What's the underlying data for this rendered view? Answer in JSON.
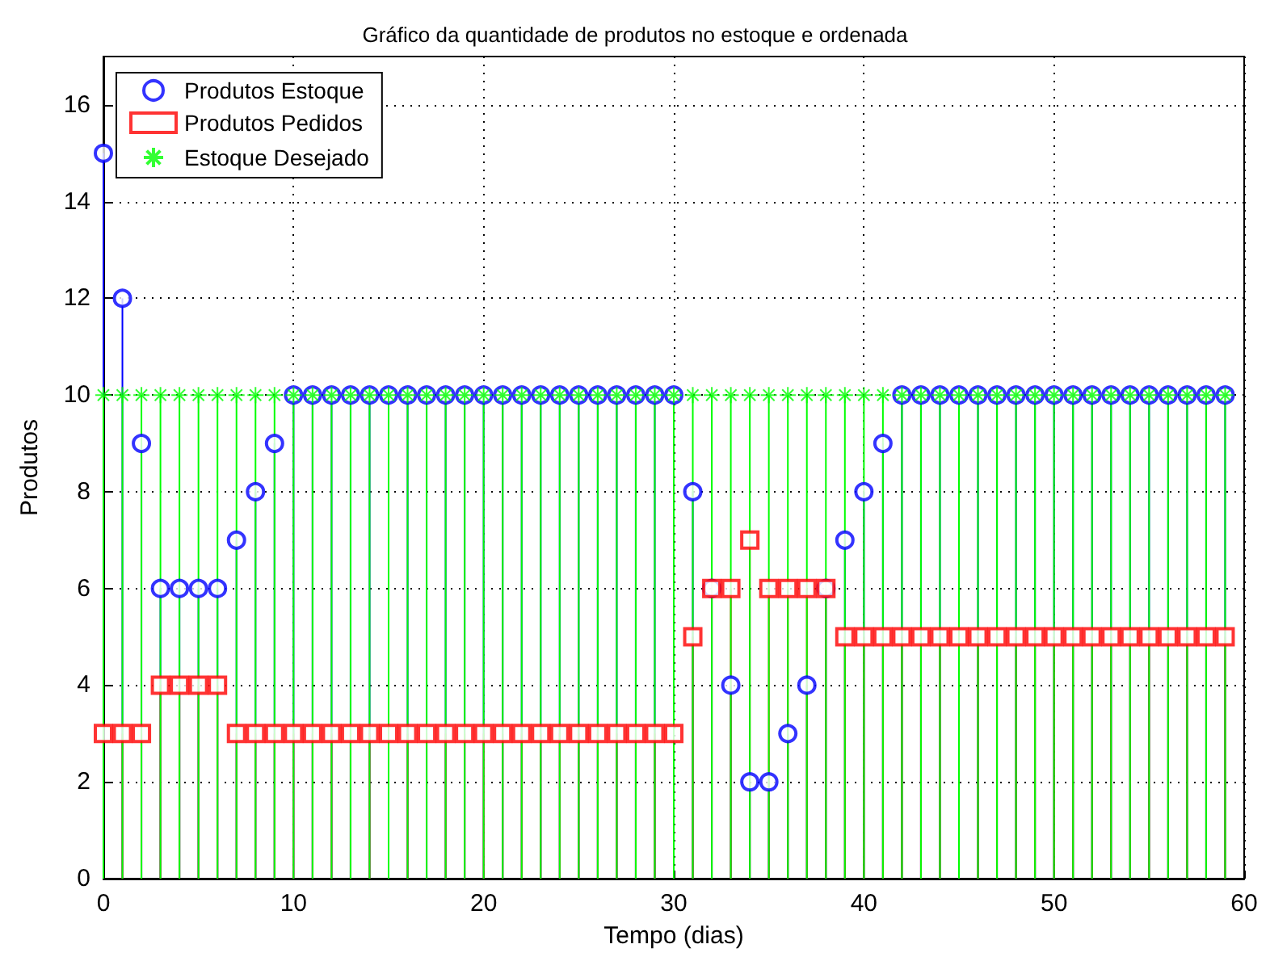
{
  "chart_data": {
    "type": "lollipop",
    "title": "Gráfico da quantidade de produtos no estoque e ordenada",
    "xlabel": "Tempo (dias)",
    "ylabel": "Produtos",
    "x": [
      0,
      1,
      2,
      3,
      4,
      5,
      6,
      7,
      8,
      9,
      10,
      11,
      12,
      13,
      14,
      15,
      16,
      17,
      18,
      19,
      20,
      21,
      22,
      23,
      24,
      25,
      26,
      27,
      28,
      29,
      30,
      31,
      32,
      33,
      34,
      35,
      36,
      37,
      38,
      39,
      40,
      41,
      42,
      43,
      44,
      45,
      46,
      47,
      48,
      49,
      50,
      51,
      52,
      53,
      54,
      55,
      56,
      57,
      58,
      59
    ],
    "series": [
      {
        "name": "Produtos Estoque",
        "color": "#0000ff",
        "marker": "circle",
        "values": [
          15,
          12,
          9,
          6,
          6,
          6,
          6,
          7,
          8,
          9,
          10,
          10,
          10,
          10,
          10,
          10,
          10,
          10,
          10,
          10,
          10,
          10,
          10,
          10,
          10,
          10,
          10,
          10,
          10,
          10,
          10,
          8,
          6,
          4,
          2,
          2,
          3,
          4,
          6,
          7,
          8,
          9,
          10,
          10,
          10,
          10,
          10,
          10,
          10,
          10,
          10,
          10,
          10,
          10,
          10,
          10,
          10,
          10,
          10,
          10
        ]
      },
      {
        "name": "Produtos Pedidos",
        "color": "#ff0000",
        "marker": "square",
        "values": [
          3,
          3,
          3,
          4,
          4,
          4,
          4,
          3,
          3,
          3,
          3,
          3,
          3,
          3,
          3,
          3,
          3,
          3,
          3,
          3,
          3,
          3,
          3,
          3,
          3,
          3,
          3,
          3,
          3,
          3,
          3,
          5,
          6,
          6,
          7,
          6,
          6,
          6,
          6,
          5,
          5,
          5,
          5,
          5,
          5,
          5,
          5,
          5,
          5,
          5,
          5,
          5,
          5,
          5,
          5,
          5,
          5,
          5,
          5,
          5
        ]
      },
      {
        "name": "Estoque Desejado",
        "color": "#00ff00",
        "marker": "cross",
        "values": [
          10,
          10,
          10,
          10,
          10,
          10,
          10,
          10,
          10,
          10,
          10,
          10,
          10,
          10,
          10,
          10,
          10,
          10,
          10,
          10,
          10,
          10,
          10,
          10,
          10,
          10,
          10,
          10,
          10,
          10,
          10,
          10,
          10,
          10,
          10,
          10,
          10,
          10,
          10,
          10,
          10,
          10,
          10,
          10,
          10,
          10,
          10,
          10,
          10,
          10,
          10,
          10,
          10,
          10,
          10,
          10,
          10,
          10,
          10,
          10
        ]
      }
    ],
    "xlim": [
      0,
      60
    ],
    "xticks": [
      0,
      10,
      20,
      30,
      40,
      50,
      60
    ],
    "ylim": [
      0,
      17
    ],
    "yticks": [
      0,
      2,
      4,
      6,
      8,
      10,
      12,
      14,
      16
    ],
    "grid": true,
    "legend": "top left"
  }
}
